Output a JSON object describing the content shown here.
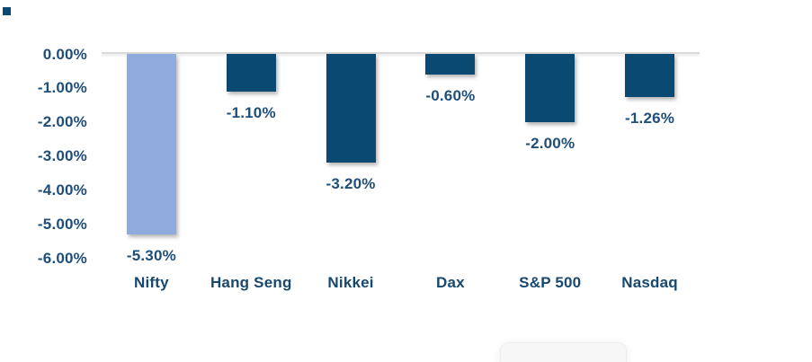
{
  "chart_data": {
    "type": "bar",
    "categories": [
      "Nifty",
      "Hang Seng",
      "Nikkei",
      "Dax",
      "S&P 500",
      "Nasdaq"
    ],
    "values": [
      -5.3,
      -1.1,
      -3.2,
      -0.6,
      -2.0,
      -1.26
    ],
    "value_labels": [
      "-5.30%",
      "-1.10%",
      "-3.20%",
      "-0.60%",
      "-2.00%",
      "-1.26%"
    ],
    "y_ticks": [
      "0.00%",
      "-1.00%",
      "-2.00%",
      "-3.00%",
      "-4.00%",
      "-5.00%",
      "-6.00%"
    ],
    "ylim": [
      -6,
      0
    ],
    "title": "",
    "xlabel": "",
    "ylabel": "",
    "grid": false,
    "legend_position": "none",
    "bar_colors": [
      "#8FAADC",
      "#0A4A72",
      "#0A4A72",
      "#0A4A72",
      "#0A4A72",
      "#0A4A72"
    ]
  },
  "colors": {
    "background": "#FFFFFF",
    "bar_dark": "#0A4A72",
    "bar_light": "#8FAADC",
    "tick_text": "#1F4E79",
    "value_text": "#1F4E79",
    "category_text": "#17486F",
    "axis_line": "#D9D9D9",
    "corner_marker": "#0A4A72",
    "popup_fill": "#F7F7F8"
  }
}
